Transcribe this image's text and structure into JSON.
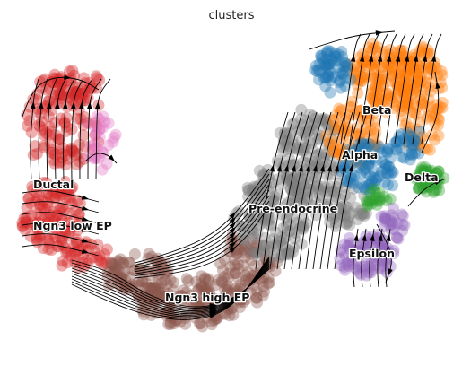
{
  "chart_data": {
    "type": "scatter",
    "subtype": "RNA velocity stream embedding",
    "title": "clusters",
    "xlabel": "",
    "ylabel": "",
    "axes_visible": false,
    "grid": false,
    "legend": "on data",
    "clusters": [
      {
        "label": "Ductal",
        "color": "#d62728"
      },
      {
        "label": "Ngn3 low EP",
        "color": "#d62728"
      },
      {
        "label": "Ngn3 high EP",
        "color": "#8c564b"
      },
      {
        "label": "Pre-endocrine",
        "color": "#7f7f7f"
      },
      {
        "label": "Beta",
        "color": "#ff7f0e"
      },
      {
        "label": "Alpha",
        "color": "#1f77b4"
      },
      {
        "label": "Delta",
        "color": "#2ca02c"
      },
      {
        "label": "Epsilon",
        "color": "#9467bd"
      }
    ],
    "extra_colors": {
      "pink": "#e377c2",
      "stream": "#000000"
    }
  }
}
